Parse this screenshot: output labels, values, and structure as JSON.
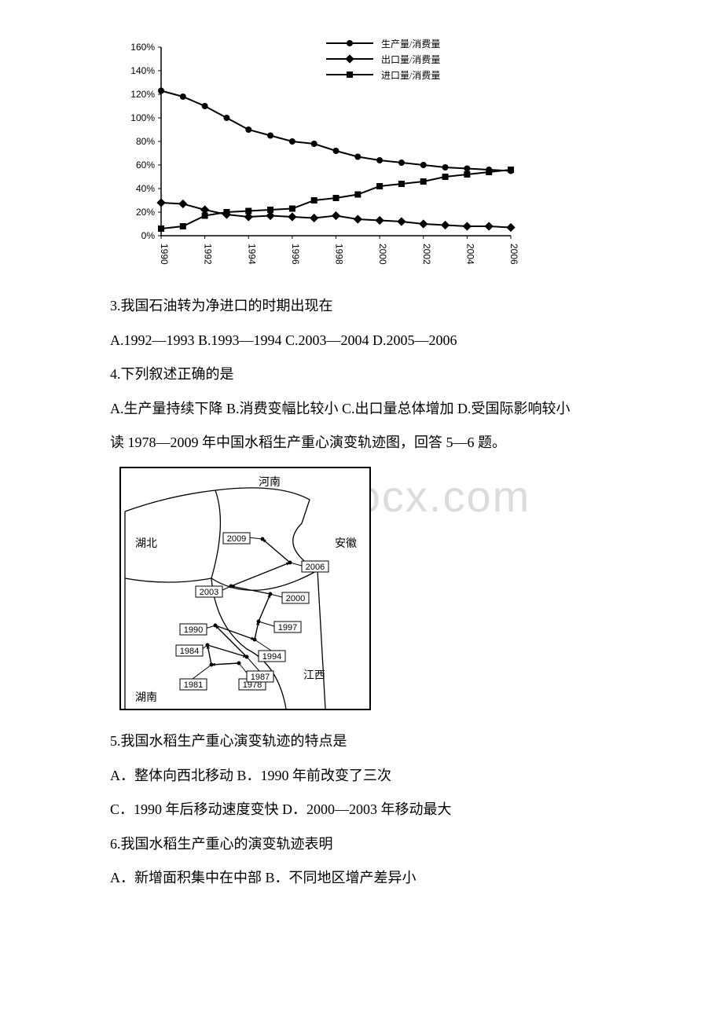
{
  "watermark": "www.bdocx.com",
  "chart1": {
    "type": "line",
    "legend": [
      "生产量/消费量",
      "出口量/消费量",
      "进口量/消费量"
    ],
    "years": [
      "1990",
      "1992",
      "1994",
      "1996",
      "1998",
      "2000",
      "2002",
      "2004",
      "2006"
    ],
    "ylabels": [
      "0%",
      "20%",
      "40%",
      "60%",
      "80%",
      "100%",
      "120%",
      "140%",
      "160%"
    ],
    "ylim": [
      0,
      160
    ],
    "ytick_step": 20,
    "series": {
      "production": [
        123,
        118,
        110,
        100,
        90,
        85,
        80,
        78,
        72,
        67,
        64,
        62,
        60,
        58,
        57,
        56,
        55
      ],
      "export": [
        28,
        27,
        22,
        18,
        16,
        17,
        16,
        15,
        17,
        14,
        13,
        12,
        10,
        9,
        8,
        8,
        7
      ],
      "import": [
        6,
        8,
        17,
        20,
        21,
        22,
        23,
        30,
        32,
        35,
        42,
        44,
        46,
        50,
        52,
        54,
        56
      ]
    },
    "markers": [
      "circle",
      "diamond",
      "square"
    ],
    "line_color": "#000000",
    "background_color": "#ffffff",
    "title_fontsize": 12,
    "label_fontsize": 11
  },
  "q3": {
    "stem": "3.我国石油转为净进口的时期出现在",
    "options": "A.1992—1993 B.1993—1994 C.2003—2004 D.2005—2006"
  },
  "q4": {
    "stem": "4.下列叙述正确的是",
    "options": "A.生产量持续下降 B.消费变幅比较小 C.出口量总体增加 D.受国际影响较小"
  },
  "intro56": "读 1978—2009 年中国水稻生产重心演变轨迹图，回答 5—6 题。",
  "chart2": {
    "type": "map-trajectory",
    "regions": {
      "top": "河南",
      "left": "湖北",
      "right": "安徽",
      "bottomleft": "湖南",
      "bottomright": "江西"
    },
    "years": [
      "1978",
      "1981",
      "1984",
      "1987",
      "1990",
      "1994",
      "1997",
      "2000",
      "2003",
      "2006",
      "2009"
    ],
    "points": {
      "1978": [
        150,
        248
      ],
      "1981": [
        115,
        250
      ],
      "1984": [
        110,
        225
      ],
      "1987": [
        160,
        240
      ],
      "1990": [
        120,
        200
      ],
      "1994": [
        170,
        218
      ],
      "1997": [
        175,
        195
      ],
      "2000": [
        190,
        160
      ],
      "2003": [
        140,
        150
      ],
      "2006": [
        215,
        120
      ],
      "2009": [
        180,
        90
      ]
    },
    "line_color": "#000000",
    "box_stroke": "#000000",
    "font_size": 11
  },
  "q5": {
    "stem": "5.我国水稻生产重心演变轨迹的特点是",
    "optA": "A．整体向西北移动 B．1990 年前改变了三次",
    "optC": "C．1990 年后移动速度变快 D．2000—2003 年移动最大"
  },
  "q6": {
    "stem": "6.我国水稻生产重心的演变轨迹表明",
    "optA": "A．新增面积集中在中部 B．不同地区增产差异小"
  }
}
